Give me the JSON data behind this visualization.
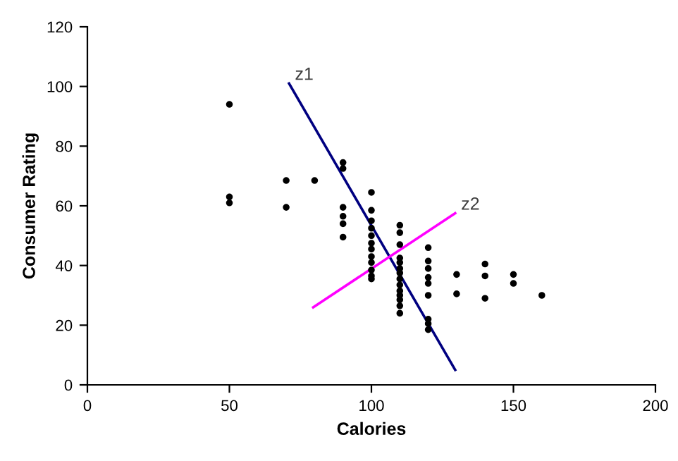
{
  "chart_data": {
    "type": "scatter",
    "xlabel": "Calories",
    "ylabel": "Consumer Rating",
    "xlim": [
      0,
      200
    ],
    "ylim": [
      0,
      120
    ],
    "xticks": [
      0,
      50,
      100,
      150,
      200
    ],
    "yticks": [
      0,
      20,
      40,
      60,
      80,
      100,
      120
    ],
    "grid": false,
    "legend": false,
    "series": [
      {
        "marker": "circle",
        "color": "#000000",
        "x": [
          50,
          50,
          50,
          70,
          70,
          80,
          90,
          90,
          90,
          90,
          90,
          90,
          100,
          100,
          100,
          100,
          100,
          100,
          100,
          100,
          100,
          100,
          100,
          100,
          110,
          110,
          110,
          110,
          110,
          110,
          110,
          110,
          110,
          110,
          110,
          110,
          110,
          110,
          120,
          120,
          120,
          120,
          120,
          120,
          120,
          120,
          120,
          130,
          130,
          140,
          140,
          140,
          150,
          150,
          160
        ],
        "values": [
          94,
          63,
          61,
          68.5,
          59.5,
          68.5,
          74.5,
          72.5,
          59.5,
          56.5,
          54,
          49.5,
          64.5,
          58.5,
          55,
          52.5,
          50,
          47.5,
          45.5,
          43,
          41,
          38.5,
          36.5,
          35.5,
          53.5,
          51,
          47,
          42.5,
          41,
          39,
          37.5,
          35.5,
          33.5,
          31.5,
          30,
          28.5,
          26.5,
          24,
          46,
          41.5,
          39,
          36,
          34,
          30,
          22,
          20.5,
          18.5,
          37,
          30.5,
          40.5,
          36.5,
          29,
          37,
          34,
          30
        ]
      },
      {
        "type": "line",
        "marker": "none",
        "color": "#000080",
        "x": [
          71,
          129.5
        ],
        "values": [
          101,
          5
        ]
      },
      {
        "type": "line",
        "marker": "none",
        "color": "#ff00ff",
        "x": [
          79.5,
          129.5
        ],
        "values": [
          26,
          57.5
        ]
      }
    ],
    "annotations": [
      {
        "text": "z1",
        "x": 71,
        "y": 101
      },
      {
        "text": "z2",
        "x": 129.5,
        "y": 57.5
      }
    ]
  }
}
